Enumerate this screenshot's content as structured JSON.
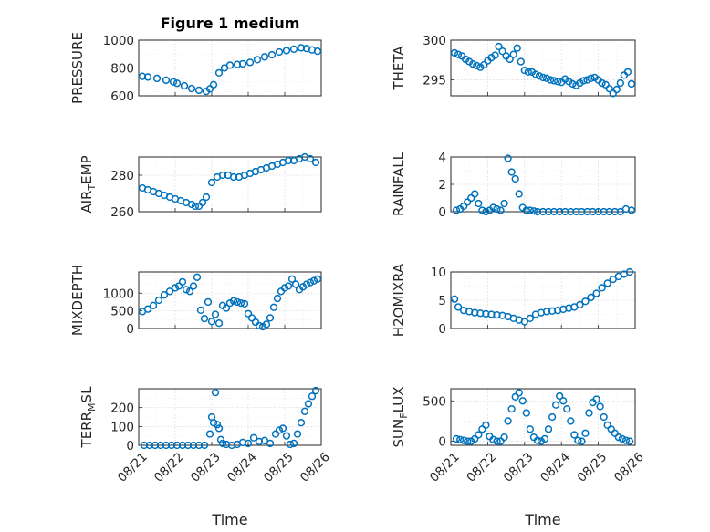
{
  "figure": {
    "title": "Figure 1 medium",
    "marker_color": "#0072BD",
    "xticks": [
      "08/21",
      "08/22",
      "08/23",
      "08/24",
      "08/25",
      "08/26"
    ]
  },
  "chart_data": [
    {
      "type": "scatter",
      "ylabel_main": "PRESSURE",
      "ylabel_sub": "",
      "xlabel": "",
      "ylim": [
        600,
        1000
      ],
      "yticks": [
        600,
        800,
        1000
      ],
      "xlim": [
        0,
        5
      ],
      "grid": true,
      "x": [
        0.1,
        0.25,
        0.5,
        0.75,
        0.95,
        1.05,
        1.25,
        1.45,
        1.65,
        1.85,
        1.95,
        2.05,
        2.2,
        2.35,
        2.5,
        2.7,
        2.85,
        3.05,
        3.25,
        3.45,
        3.65,
        3.85,
        4.05,
        4.25,
        4.45,
        4.6,
        4.75,
        4.9
      ],
      "y": [
        740,
        735,
        725,
        712,
        700,
        690,
        672,
        652,
        640,
        632,
        650,
        680,
        765,
        800,
        820,
        825,
        830,
        840,
        860,
        880,
        895,
        915,
        925,
        935,
        945,
        940,
        930,
        920
      ]
    },
    {
      "type": "scatter",
      "ylabel_main": "THETA",
      "ylabel_sub": "",
      "xlabel": "",
      "ylim": [
        293,
        300
      ],
      "yticks": [
        295,
        300
      ],
      "xlim": [
        0,
        5
      ],
      "grid": true,
      "x": [
        0.1,
        0.2,
        0.3,
        0.4,
        0.5,
        0.6,
        0.7,
        0.8,
        0.9,
        1.0,
        1.1,
        1.2,
        1.3,
        1.4,
        1.5,
        1.6,
        1.7,
        1.8,
        1.9,
        2.0,
        2.1,
        2.2,
        2.3,
        2.4,
        2.5,
        2.6,
        2.7,
        2.8,
        2.9,
        3.0,
        3.1,
        3.2,
        3.3,
        3.4,
        3.5,
        3.6,
        3.7,
        3.8,
        3.9,
        4.0,
        4.1,
        4.2,
        4.3,
        4.4,
        4.5,
        4.6,
        4.7,
        4.8,
        4.9
      ],
      "y": [
        298.4,
        298.2,
        298.0,
        297.6,
        297.3,
        297.0,
        296.8,
        296.6,
        296.9,
        297.4,
        297.8,
        298.1,
        299.2,
        298.6,
        298.0,
        297.6,
        298.2,
        299.0,
        297.3,
        296.2,
        296.0,
        296.0,
        295.7,
        295.5,
        295.3,
        295.2,
        295.0,
        294.9,
        294.8,
        294.7,
        295.1,
        294.8,
        294.5,
        294.3,
        294.6,
        294.9,
        295.0,
        295.2,
        295.3,
        295.0,
        294.6,
        294.4,
        293.9,
        293.3,
        293.8,
        294.6,
        295.6,
        296.0,
        294.5
      ]
    },
    {
      "type": "scatter",
      "ylabel_main": "AIR",
      "ylabel_sub": "T",
      "ylabel_tail": "EMP",
      "xlabel": "",
      "ylim": [
        260,
        290
      ],
      "yticks": [
        260,
        280
      ],
      "xlim": [
        0,
        5
      ],
      "grid": true,
      "x": [
        0.1,
        0.25,
        0.4,
        0.55,
        0.7,
        0.85,
        1.0,
        1.15,
        1.3,
        1.45,
        1.55,
        1.65,
        1.75,
        1.85,
        2.0,
        2.15,
        2.3,
        2.45,
        2.6,
        2.75,
        2.9,
        3.05,
        3.2,
        3.35,
        3.5,
        3.65,
        3.8,
        3.95,
        4.1,
        4.25,
        4.4,
        4.55,
        4.7,
        4.85
      ],
      "y": [
        273,
        272,
        271,
        270,
        269,
        268,
        267,
        266,
        265,
        264,
        263,
        263,
        265,
        268,
        276,
        279,
        280,
        280,
        279,
        279,
        280,
        281,
        282,
        283,
        284,
        285,
        286,
        287,
        288,
        288,
        289,
        290,
        289,
        287
      ]
    },
    {
      "type": "scatter",
      "ylabel_main": "RAINFALL",
      "ylabel_sub": "",
      "xlabel": "",
      "ylim": [
        0,
        4
      ],
      "yticks": [
        0,
        2,
        4
      ],
      "xlim": [
        0,
        5
      ],
      "grid": true,
      "x": [
        0.15,
        0.25,
        0.35,
        0.45,
        0.55,
        0.65,
        0.75,
        0.85,
        0.95,
        1.05,
        1.15,
        1.25,
        1.35,
        1.45,
        1.55,
        1.65,
        1.75,
        1.85,
        1.95,
        2.05,
        2.15,
        2.25,
        2.35,
        2.5,
        2.65,
        2.8,
        2.95,
        3.1,
        3.25,
        3.4,
        3.55,
        3.7,
        3.85,
        4.0,
        4.15,
        4.3,
        4.45,
        4.6,
        4.75,
        4.9
      ],
      "y": [
        0.1,
        0.2,
        0.4,
        0.7,
        1.0,
        1.3,
        0.6,
        0.1,
        0,
        0.1,
        0.3,
        0.2,
        0.1,
        0.6,
        3.9,
        2.9,
        2.4,
        1.3,
        0.3,
        0.1,
        0.1,
        0.05,
        0,
        0,
        0,
        0,
        0,
        0,
        0,
        0,
        0,
        0,
        0,
        0,
        0,
        0,
        0,
        0,
        0.2,
        0.1
      ]
    },
    {
      "type": "scatter",
      "ylabel_main": "MIXDEPTH",
      "ylabel_sub": "",
      "xlabel": "",
      "ylim": [
        0,
        1600
      ],
      "yticks": [
        0,
        500,
        1000
      ],
      "xlim": [
        0,
        5
      ],
      "grid": true,
      "x": [
        0.1,
        0.25,
        0.4,
        0.55,
        0.7,
        0.85,
        1.0,
        1.1,
        1.2,
        1.3,
        1.4,
        1.5,
        1.6,
        1.7,
        1.8,
        1.9,
        2.0,
        2.1,
        2.2,
        2.3,
        2.4,
        2.5,
        2.6,
        2.7,
        2.8,
        2.9,
        3.0,
        3.1,
        3.2,
        3.3,
        3.4,
        3.5,
        3.6,
        3.7,
        3.8,
        3.9,
        4.0,
        4.1,
        4.2,
        4.3,
        4.4,
        4.5,
        4.6,
        4.7,
        4.8,
        4.9
      ],
      "y": [
        480,
        550,
        650,
        800,
        950,
        1050,
        1150,
        1200,
        1320,
        1100,
        1050,
        1200,
        1450,
        520,
        280,
        750,
        200,
        400,
        150,
        650,
        580,
        720,
        780,
        750,
        720,
        700,
        420,
        300,
        180,
        80,
        50,
        120,
        300,
        600,
        850,
        1050,
        1150,
        1200,
        1400,
        1250,
        1100,
        1180,
        1250,
        1300,
        1350,
        1400
      ]
    },
    {
      "type": "scatter",
      "ylabel_main": "H2OMIXRA",
      "ylabel_sub": "",
      "xlabel": "",
      "ylim": [
        0,
        10
      ],
      "yticks": [
        0,
        5,
        10
      ],
      "xlim": [
        0,
        5
      ],
      "grid": true,
      "x": [
        0.1,
        0.2,
        0.35,
        0.5,
        0.65,
        0.8,
        0.95,
        1.1,
        1.25,
        1.4,
        1.55,
        1.7,
        1.85,
        2.0,
        2.15,
        2.3,
        2.45,
        2.6,
        2.75,
        2.9,
        3.05,
        3.2,
        3.35,
        3.5,
        3.65,
        3.8,
        3.95,
        4.1,
        4.25,
        4.4,
        4.55,
        4.7,
        4.85
      ],
      "y": [
        5.2,
        3.8,
        3.2,
        3.0,
        2.8,
        2.7,
        2.6,
        2.5,
        2.4,
        2.3,
        2.1,
        1.8,
        1.5,
        1.2,
        1.8,
        2.5,
        2.8,
        3.0,
        3.1,
        3.2,
        3.4,
        3.6,
        3.8,
        4.2,
        4.8,
        5.5,
        6.2,
        7.2,
        8.0,
        8.7,
        9.2,
        9.6,
        10.0
      ]
    },
    {
      "type": "scatter",
      "ylabel_main": "TERR",
      "ylabel_sub": "M",
      "ylabel_tail": "SL",
      "xlabel": "Time",
      "ylim": [
        0,
        300
      ],
      "yticks": [
        0,
        100,
        200
      ],
      "xlim": [
        0,
        5
      ],
      "grid": true,
      "x": [
        0.15,
        0.3,
        0.45,
        0.6,
        0.75,
        0.9,
        1.05,
        1.2,
        1.35,
        1.5,
        1.65,
        1.8,
        1.95,
        2.0,
        2.05,
        2.1,
        2.15,
        2.2,
        2.25,
        2.3,
        2.4,
        2.55,
        2.7,
        2.85,
        3.0,
        3.15,
        3.3,
        3.45,
        3.6,
        3.75,
        3.85,
        3.95,
        4.05,
        4.15,
        4.25,
        4.35,
        4.45,
        4.55,
        4.65,
        4.75,
        4.85
      ],
      "y": [
        0,
        0,
        0,
        0,
        0,
        0,
        0,
        0,
        0,
        0,
        0,
        0,
        60,
        150,
        120,
        280,
        110,
        90,
        30,
        10,
        5,
        0,
        5,
        15,
        10,
        40,
        20,
        25,
        10,
        60,
        80,
        90,
        50,
        5,
        10,
        60,
        120,
        180,
        220,
        260,
        290
      ]
    },
    {
      "type": "scatter",
      "ylabel_main": "SUN",
      "ylabel_sub": "F",
      "ylabel_tail": "LUX",
      "xlabel": "Time",
      "ylim": [
        -50,
        650
      ],
      "yticks": [
        0,
        500
      ],
      "xlim": [
        0,
        5
      ],
      "grid": true,
      "x": [
        0.15,
        0.25,
        0.35,
        0.45,
        0.55,
        0.65,
        0.75,
        0.85,
        0.95,
        1.05,
        1.15,
        1.25,
        1.35,
        1.45,
        1.55,
        1.65,
        1.75,
        1.85,
        1.95,
        2.05,
        2.15,
        2.25,
        2.35,
        2.45,
        2.55,
        2.65,
        2.75,
        2.85,
        2.95,
        3.05,
        3.15,
        3.25,
        3.35,
        3.45,
        3.55,
        3.65,
        3.75,
        3.85,
        3.95,
        4.05,
        4.15,
        4.25,
        4.35,
        4.45,
        4.55,
        4.65,
        4.75,
        4.85
      ],
      "y": [
        30,
        20,
        10,
        0,
        0,
        30,
        80,
        150,
        200,
        60,
        20,
        0,
        0,
        50,
        250,
        400,
        550,
        600,
        500,
        350,
        150,
        50,
        10,
        0,
        30,
        150,
        300,
        450,
        560,
        500,
        400,
        250,
        80,
        10,
        0,
        100,
        350,
        480,
        520,
        430,
        300,
        200,
        150,
        100,
        50,
        30,
        10,
        0
      ]
    }
  ]
}
